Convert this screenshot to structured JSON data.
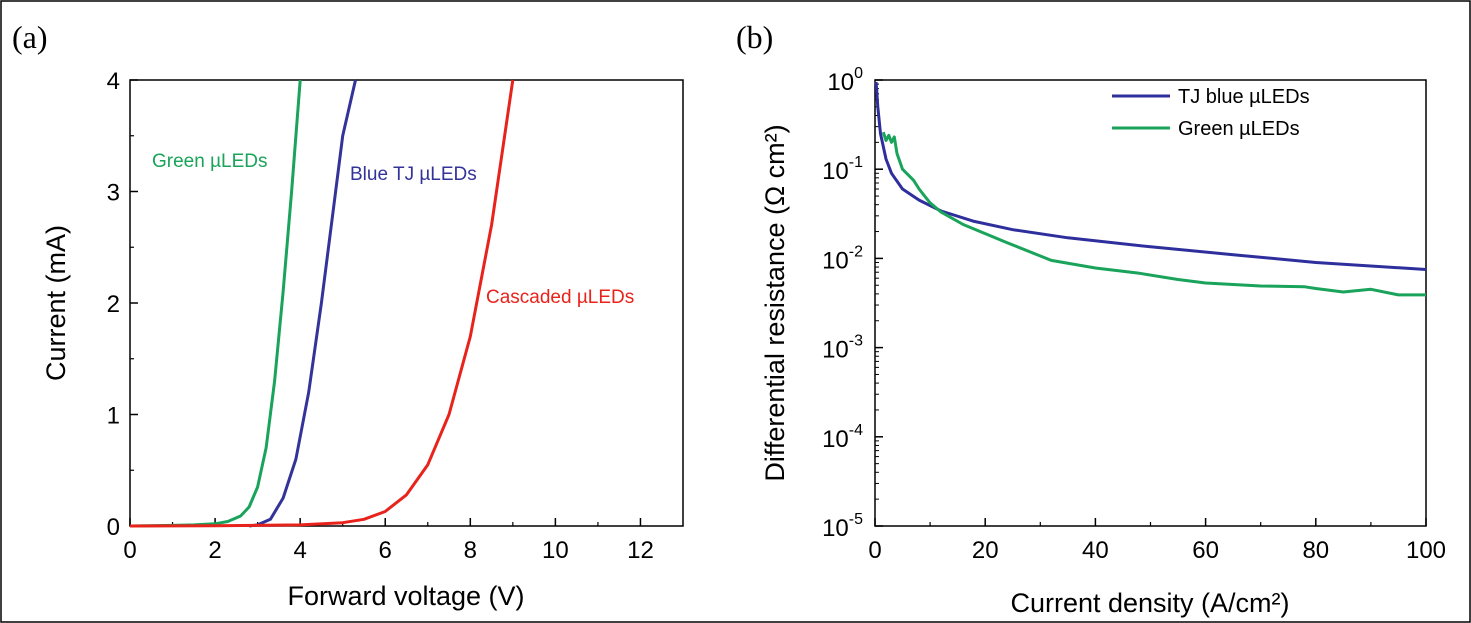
{
  "chart_data": [
    {
      "panel": "(a)",
      "type": "line",
      "xlabel": "Forward voltage (V)",
      "ylabel": "Current (mA)",
      "xlim": [
        0,
        13
      ],
      "ylim": [
        0,
        4
      ],
      "xticks": [
        0,
        2,
        4,
        6,
        8,
        10,
        12
      ],
      "yticks": [
        0,
        1,
        2,
        3,
        4
      ],
      "grid": false,
      "series": [
        {
          "name": "Green µLEDs",
          "color": "#1aa35a",
          "x": [
            0,
            1,
            1.5,
            2,
            2.3,
            2.6,
            2.8,
            3.0,
            3.2,
            3.4,
            3.6,
            3.8,
            4.0
          ],
          "y": [
            0,
            0.005,
            0.01,
            0.02,
            0.04,
            0.09,
            0.17,
            0.35,
            0.7,
            1.3,
            2.1,
            3.0,
            4.0
          ]
        },
        {
          "name": "Blue TJ µLEDs",
          "color": "#33339a",
          "x": [
            2.8,
            3.0,
            3.3,
            3.6,
            3.9,
            4.2,
            4.5,
            4.8,
            5.0,
            5.3
          ],
          "y": [
            0,
            0.01,
            0.06,
            0.25,
            0.6,
            1.2,
            2.0,
            2.9,
            3.5,
            4.0
          ]
        },
        {
          "name": "Cascaded µLEDs",
          "color": "#e8231b",
          "x": [
            0,
            2,
            4,
            5,
            5.5,
            6,
            6.5,
            7,
            7.5,
            8,
            8.5,
            9.0
          ],
          "y": [
            0,
            0.002,
            0.01,
            0.03,
            0.06,
            0.13,
            0.28,
            0.55,
            1.0,
            1.7,
            2.7,
            4.0
          ]
        }
      ]
    },
    {
      "panel": "(b)",
      "type": "line",
      "xlabel": "Current density (A/cm²)",
      "ylabel": "Differential resistance (Ω cm²)",
      "xlim": [
        0,
        100
      ],
      "ylim": [
        1e-05,
        1
      ],
      "yscale": "log",
      "xticks": [
        0,
        20,
        40,
        60,
        80,
        100
      ],
      "yticks": [
        "10^0",
        "10^-1",
        "10^-2",
        "10^-3",
        "10^-4",
        "10^-5"
      ],
      "grid": false,
      "legend": "top-right",
      "series": [
        {
          "name": "TJ blue µLEDs",
          "color": "#2e2f9c",
          "x": [
            0.2,
            0.5,
            1,
            2,
            3,
            5,
            8,
            12,
            18,
            25,
            35,
            50,
            65,
            80,
            100
          ],
          "y": [
            0.95,
            0.5,
            0.25,
            0.13,
            0.09,
            0.06,
            0.045,
            0.034,
            0.026,
            0.021,
            0.017,
            0.0135,
            0.011,
            0.009,
            0.0075
          ]
        },
        {
          "name": "Green µLEDs",
          "color": "#1aa35a",
          "x": [
            1.5,
            2,
            2.5,
            3,
            3.5,
            4,
            5,
            7,
            8,
            9,
            10,
            12,
            16,
            24,
            32,
            40,
            48,
            55,
            60,
            70,
            78,
            80,
            85,
            90,
            95,
            100
          ],
          "y": [
            0.26,
            0.21,
            0.24,
            0.2,
            0.23,
            0.15,
            0.1,
            0.075,
            0.06,
            0.05,
            0.042,
            0.033,
            0.024,
            0.015,
            0.0095,
            0.0078,
            0.0068,
            0.0058,
            0.0053,
            0.0049,
            0.0048,
            0.0046,
            0.0042,
            0.0045,
            0.0039,
            0.0039
          ]
        }
      ]
    }
  ]
}
